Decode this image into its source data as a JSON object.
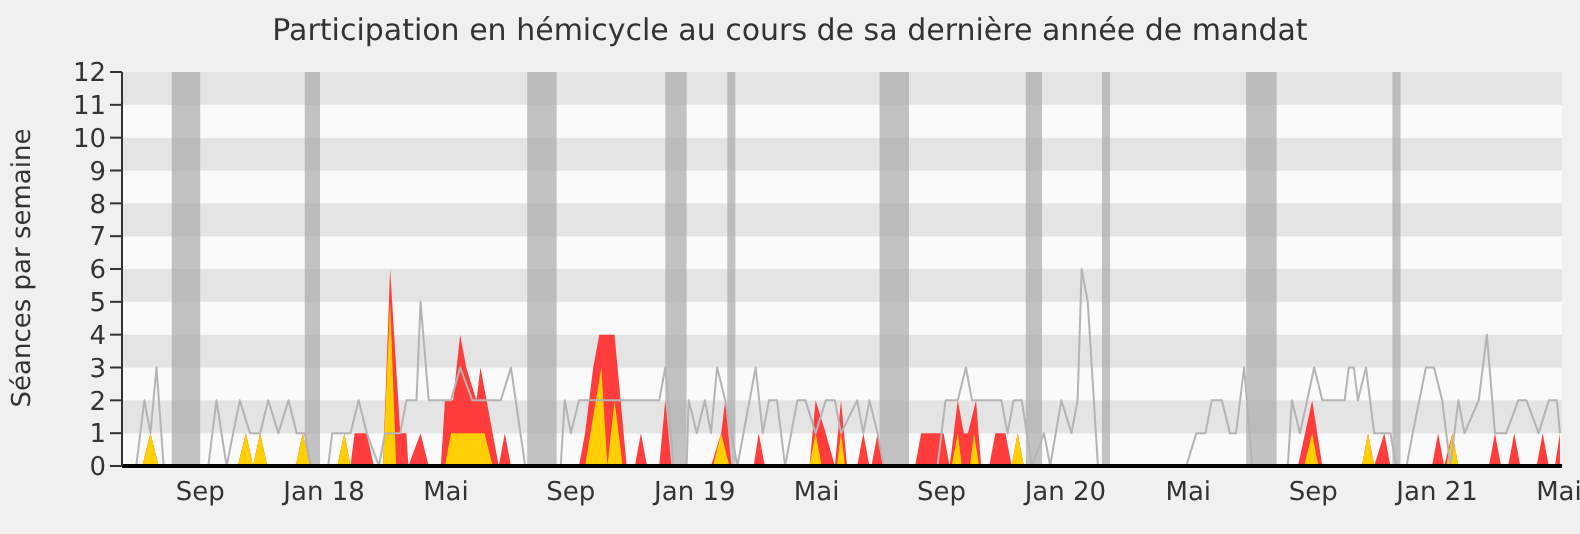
{
  "chart_data": {
    "type": "area",
    "title": "Participation en hémicycle au cours de sa dernière année de mandat",
    "ylabel": "Séances par semaine",
    "xlim": [
      "2017-06-16",
      "2021-05-04"
    ],
    "xticks": [
      {
        "value": "2017-09-01",
        "label": "Sep"
      },
      {
        "value": "2018-01-01",
        "label": "Jan 18"
      },
      {
        "value": "2018-05-01",
        "label": "Mai"
      },
      {
        "value": "2018-09-01",
        "label": "Sep"
      },
      {
        "value": "2019-01-01",
        "label": "Jan 19"
      },
      {
        "value": "2019-05-01",
        "label": "Mai"
      },
      {
        "value": "2019-09-01",
        "label": "Sep"
      },
      {
        "value": "2020-01-01",
        "label": "Jan 20"
      },
      {
        "value": "2020-05-01",
        "label": "Mai"
      },
      {
        "value": "2020-09-01",
        "label": "Sep"
      },
      {
        "value": "2021-01-01",
        "label": "Jan 21"
      },
      {
        "value": "2021-05-01",
        "label": "Mai"
      }
    ],
    "ylim": [
      0,
      12
    ],
    "yticks": [
      0,
      1,
      2,
      3,
      4,
      5,
      6,
      7,
      8,
      9,
      10,
      11,
      12
    ],
    "legend": false,
    "bands": [
      {
        "axis": "x",
        "from": "2017-08-04",
        "to": "2017-09-01",
        "color": "#aaaaaa"
      },
      {
        "axis": "x",
        "from": "2017-12-13",
        "to": "2017-12-28",
        "color": "#aaaaaa"
      },
      {
        "axis": "x",
        "from": "2018-07-20",
        "to": "2018-08-18",
        "color": "#aaaaaa"
      },
      {
        "axis": "x",
        "from": "2018-12-03",
        "to": "2018-12-24",
        "color": "#aaaaaa"
      },
      {
        "axis": "x",
        "from": "2019-02-02",
        "to": "2019-02-10",
        "color": "#aaaaaa"
      },
      {
        "axis": "x",
        "from": "2019-07-02",
        "to": "2019-07-31",
        "color": "#aaaaaa"
      },
      {
        "axis": "x",
        "from": "2019-11-23",
        "to": "2019-12-09",
        "color": "#aaaaaa"
      },
      {
        "axis": "x",
        "from": "2020-02-06",
        "to": "2020-02-14",
        "color": "#aaaaaa"
      },
      {
        "axis": "x",
        "from": "2020-06-27",
        "to": "2020-07-27",
        "color": "#aaaaaa"
      },
      {
        "axis": "x",
        "from": "2020-11-18",
        "to": "2020-11-26",
        "color": "#aaaaaa"
      }
    ],
    "series": [
      {
        "type": "line",
        "color": "#b4b4b4",
        "x": [
          "2017-06-30",
          "2017-07-08",
          "2017-07-14",
          "2017-07-20",
          "2017-07-27",
          "2017-09-09",
          "2017-09-17",
          "2017-09-27",
          "2017-10-10",
          "2017-10-20",
          "2017-10-30",
          "2017-11-07",
          "2017-11-17",
          "2017-11-27",
          "2017-12-05",
          "2017-12-13",
          "2017-12-19",
          "2018-01-05",
          "2018-01-09",
          "2018-01-27",
          "2018-02-04",
          "2018-02-12",
          "2018-02-24",
          "2018-03-02",
          "2018-03-17",
          "2018-03-23",
          "2018-04-02",
          "2018-04-06",
          "2018-04-14",
          "2018-04-26",
          "2018-05-06",
          "2018-05-15",
          "2018-05-27",
          "2018-06-12",
          "2018-06-24",
          "2018-07-04",
          "2018-07-18",
          "2018-08-22",
          "2018-08-26",
          "2018-09-01",
          "2018-09-09",
          "2018-10-20",
          "2018-11-27",
          "2018-12-03",
          "2018-12-11",
          "2018-12-24",
          "2018-12-26",
          "2019-01-03",
          "2019-01-11",
          "2019-01-17",
          "2019-01-23",
          "2019-01-31",
          "2019-02-12",
          "2019-02-24",
          "2019-03-02",
          "2019-03-09",
          "2019-03-15",
          "2019-03-23",
          "2019-03-31",
          "2019-04-12",
          "2019-04-20",
          "2019-04-30",
          "2019-05-10",
          "2019-05-19",
          "2019-05-25",
          "2019-06-10",
          "2019-06-16",
          "2019-06-22",
          "2019-06-30",
          "2019-07-06",
          "2019-08-28",
          "2019-09-05",
          "2019-09-17",
          "2019-09-25",
          "2019-10-01",
          "2019-10-30",
          "2019-11-05",
          "2019-11-11",
          "2019-11-19",
          "2019-11-29",
          "2019-12-11",
          "2019-12-17",
          "2019-12-28",
          "2020-01-07",
          "2020-01-13",
          "2020-01-17",
          "2020-01-23",
          "2020-02-02",
          "2020-04-29",
          "2020-05-09",
          "2020-05-18",
          "2020-05-24",
          "2020-06-03",
          "2020-06-11",
          "2020-06-17",
          "2020-06-25",
          "2020-07-03",
          "2020-08-07",
          "2020-08-11",
          "2020-08-19",
          "2020-09-02",
          "2020-09-10",
          "2020-10-02",
          "2020-10-06",
          "2020-10-11",
          "2020-10-15",
          "2020-10-23",
          "2020-10-31",
          "2020-11-16",
          "2020-11-22",
          "2020-12-02",
          "2020-12-08",
          "2020-12-21",
          "2020-12-29",
          "2021-01-06",
          "2021-01-14",
          "2021-01-22",
          "2021-01-28",
          "2021-02-11",
          "2021-02-19",
          "2021-02-27",
          "2021-03-10",
          "2021-03-22",
          "2021-03-30",
          "2021-04-11",
          "2021-04-21",
          "2021-04-29",
          "2021-05-02"
        ],
        "values": [
          0,
          2,
          1,
          3,
          0,
          0,
          2,
          0,
          2,
          1,
          1,
          2,
          1,
          2,
          1,
          1,
          0,
          0,
          1,
          1,
          2,
          1,
          0,
          1,
          1,
          2,
          2,
          5,
          2,
          2,
          2,
          3,
          2,
          2,
          2,
          3,
          0,
          0,
          2,
          1,
          2,
          2,
          2,
          3,
          0,
          0,
          2,
          1,
          2,
          1,
          3,
          2,
          0,
          2,
          3,
          1,
          2,
          2,
          0,
          2,
          2,
          1,
          2,
          2,
          1,
          2,
          1,
          2,
          1,
          0,
          0,
          2,
          2,
          3,
          2,
          2,
          1,
          2,
          2,
          0,
          1,
          0,
          2,
          1,
          2,
          6,
          5,
          0,
          0,
          1,
          1,
          2,
          2,
          1,
          1,
          3,
          0,
          0,
          2,
          1,
          3,
          2,
          2,
          3,
          3,
          2,
          3,
          1,
          1,
          0,
          0,
          1,
          3,
          3,
          2,
          0,
          2,
          1,
          2,
          4,
          1,
          1,
          2,
          2,
          1,
          2,
          2,
          1
        ]
      },
      {
        "color": "#ff3333",
        "x": [
          "2017-06-16",
          "2017-07-06",
          "2017-07-14",
          "2017-07-22",
          "2017-10-08",
          "2017-10-16",
          "2017-10-23",
          "2017-10-30",
          "2017-11-06",
          "2017-12-04",
          "2017-12-11",
          "2017-12-18",
          "2018-01-14",
          "2018-01-21",
          "2018-01-27",
          "2018-01-31",
          "2018-02-12",
          "2018-02-19",
          "2018-02-28",
          "2018-03-07",
          "2018-03-17",
          "2018-03-23",
          "2018-03-25",
          "2018-04-06",
          "2018-04-14",
          "2018-04-26",
          "2018-04-30",
          "2018-05-08",
          "2018-05-15",
          "2018-05-21",
          "2018-05-31",
          "2018-06-04",
          "2018-06-10",
          "2018-06-16",
          "2018-06-22",
          "2018-06-28",
          "2018-07-04",
          "2018-09-09",
          "2018-09-15",
          "2018-09-23",
          "2018-09-29",
          "2018-10-14",
          "2018-10-26",
          "2018-11-03",
          "2018-11-09",
          "2018-11-15",
          "2018-11-27",
          "2018-12-03",
          "2018-12-09",
          "2019-01-17",
          "2019-01-27",
          "2019-01-31",
          "2019-02-06",
          "2019-02-28",
          "2019-03-05",
          "2019-03-11",
          "2019-04-24",
          "2019-04-30",
          "2019-05-10",
          "2019-05-19",
          "2019-05-25",
          "2019-05-31",
          "2019-06-10",
          "2019-06-16",
          "2019-06-22",
          "2019-06-24",
          "2019-06-30",
          "2019-07-06",
          "2019-08-06",
          "2019-08-12",
          "2019-09-03",
          "2019-09-09",
          "2019-09-17",
          "2019-09-23",
          "2019-09-27",
          "2019-10-05",
          "2019-10-10",
          "2019-10-18",
          "2019-10-24",
          "2019-11-03",
          "2019-11-09",
          "2019-11-15",
          "2019-11-21",
          "2020-08-17",
          "2020-08-31",
          "2020-09-10",
          "2020-10-19",
          "2020-10-25",
          "2020-10-31",
          "2020-11-10",
          "2020-11-16",
          "2020-12-27",
          "2021-01-02",
          "2021-01-08",
          "2021-01-16",
          "2021-01-22",
          "2021-02-21",
          "2021-02-27",
          "2021-03-05",
          "2021-03-12",
          "2021-03-18",
          "2021-03-24",
          "2021-04-09",
          "2021-04-15",
          "2021-04-21",
          "2021-04-27",
          "2021-05-02"
        ],
        "values": [
          0,
          0,
          1,
          0,
          0,
          1,
          0,
          1,
          0,
          0,
          1,
          0,
          0,
          1,
          0,
          1,
          1,
          0,
          0,
          6,
          1,
          1,
          0,
          1,
          0,
          0,
          2,
          2,
          4,
          3,
          2,
          3,
          2,
          1,
          0,
          1,
          0,
          0,
          1,
          3,
          4,
          4,
          0,
          0,
          1,
          0,
          0,
          2,
          0,
          0,
          1,
          2,
          0,
          0,
          1,
          0,
          0,
          2,
          1,
          0,
          2,
          0,
          0,
          1,
          0,
          0,
          1,
          0,
          0,
          1,
          1,
          0,
          2,
          1,
          1,
          2,
          0,
          0,
          1,
          1,
          0,
          1,
          0,
          0,
          2,
          0,
          0,
          1,
          0,
          1,
          0,
          0,
          1,
          0,
          1,
          0,
          0,
          1,
          0,
          0,
          1,
          0,
          0,
          1,
          0,
          0,
          1
        ]
      },
      {
        "color": "#ffd700",
        "x": [
          "2017-06-16",
          "2017-07-06",
          "2017-07-14",
          "2017-07-22",
          "2017-10-08",
          "2017-10-16",
          "2017-10-23",
          "2017-10-30",
          "2017-11-06",
          "2017-12-04",
          "2017-12-11",
          "2017-12-18",
          "2018-01-14",
          "2018-01-21",
          "2018-01-27",
          "2018-02-28",
          "2018-03-07",
          "2018-03-13",
          "2018-04-30",
          "2018-05-06",
          "2018-06-08",
          "2018-06-16",
          "2018-09-15",
          "2018-10-01",
          "2018-10-07",
          "2018-10-14",
          "2018-10-22",
          "2019-01-19",
          "2019-01-27",
          "2019-02-04",
          "2019-04-24",
          "2019-04-30",
          "2019-05-06",
          "2019-05-21",
          "2019-05-25",
          "2019-05-29",
          "2019-09-11",
          "2019-09-17",
          "2019-09-21",
          "2019-09-29",
          "2019-10-03",
          "2019-10-08",
          "2019-11-09",
          "2019-11-15",
          "2019-11-21",
          "2020-08-23",
          "2020-08-31",
          "2020-09-06",
          "2020-10-19",
          "2020-10-25",
          "2020-10-31",
          "2021-01-10",
          "2021-01-16",
          "2021-01-22",
          "2021-05-02"
        ],
        "values": [
          0,
          0,
          1,
          0,
          0,
          1,
          0,
          1,
          0,
          0,
          1,
          0,
          0,
          1,
          0,
          0,
          5,
          0,
          0,
          1,
          1,
          0,
          0,
          3,
          0,
          2,
          0,
          0,
          1,
          0,
          0,
          1,
          0,
          0,
          1,
          0,
          0,
          1,
          0,
          0,
          1,
          0,
          0,
          1,
          0,
          0,
          1,
          0,
          0,
          1,
          0,
          0,
          1,
          0,
          0
        ]
      }
    ]
  }
}
